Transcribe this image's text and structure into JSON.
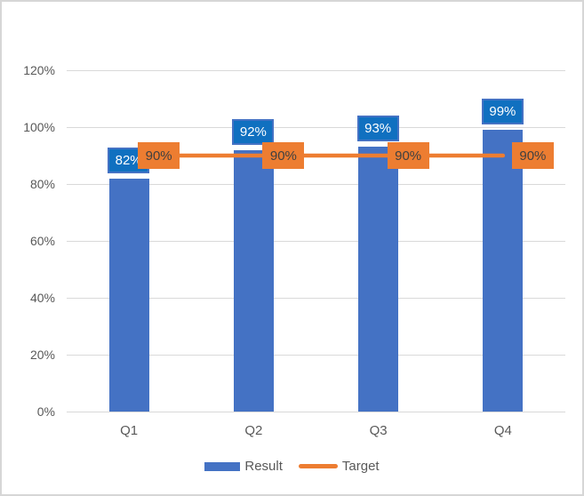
{
  "chart_data": {
    "type": "bar",
    "title": "",
    "categories": [
      "Q1",
      "Q2",
      "Q3",
      "Q4"
    ],
    "series": [
      {
        "name": "Result",
        "chart_type": "bar",
        "values": [
          82,
          92,
          93,
          99
        ],
        "data_labels": [
          "82%",
          "92%",
          "93%",
          "99%"
        ],
        "color": "#4472C4",
        "label_style": {
          "fill": "#1070C0",
          "border": "#4472C4",
          "text": "#FFFFFF"
        }
      },
      {
        "name": "Target",
        "chart_type": "line",
        "values": [
          90,
          90,
          90,
          90
        ],
        "data_labels": [
          "90%",
          "90%",
          "90%",
          "90%"
        ],
        "color": "#ED7D31",
        "label_style": {
          "fill": "#ED7D31",
          "border": "#ED7D31",
          "text": "#404040"
        }
      }
    ],
    "xlabel": "",
    "ylabel": "",
    "ylim": [
      0,
      120
    ],
    "y_ticks": [
      {
        "label": "0%",
        "value": 0
      },
      {
        "label": "20%",
        "value": 20
      },
      {
        "label": "40%",
        "value": 40
      },
      {
        "label": "60%",
        "value": 60
      },
      {
        "label": "80%",
        "value": 80
      },
      {
        "label": "100%",
        "value": 100
      },
      {
        "label": "120%",
        "value": 120
      }
    ],
    "grid": true,
    "legend_position": "bottom",
    "legend": [
      {
        "label": "Result"
      },
      {
        "label": "Target"
      }
    ]
  },
  "colors": {
    "grid": "#D9D9D9",
    "axis_text": "#595959",
    "frame_border": "#D6D6D6",
    "background": "#FFFFFF"
  }
}
